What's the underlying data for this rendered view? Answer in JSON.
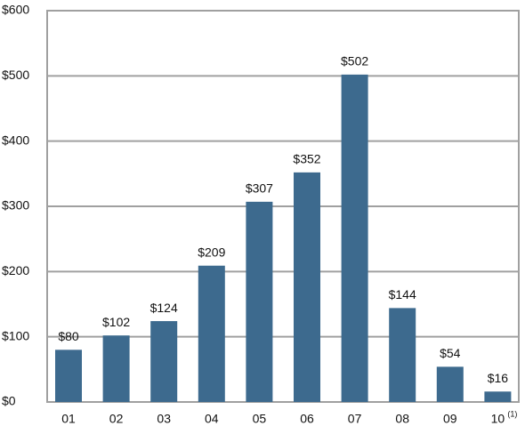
{
  "chart_data": {
    "type": "bar",
    "categories": [
      "01",
      "02",
      "03",
      "04",
      "05",
      "06",
      "07",
      "08",
      "09",
      "10"
    ],
    "category_notes": [
      null,
      null,
      null,
      null,
      null,
      null,
      null,
      null,
      null,
      "(1)"
    ],
    "values": [
      80,
      102,
      124,
      209,
      307,
      352,
      502,
      144,
      54,
      16
    ],
    "value_labels": [
      "$80",
      "$102",
      "$124",
      "$209",
      "$307",
      "$352",
      "$502",
      "$144",
      "$54",
      "$16"
    ],
    "color": "#3d6a8e",
    "ylim": [
      0,
      600
    ],
    "yticks": [
      {
        "value": 0,
        "label": "$0"
      },
      {
        "value": 100,
        "label": "$100"
      },
      {
        "value": 200,
        "label": "$200"
      },
      {
        "value": 300,
        "label": "$300"
      },
      {
        "value": 400,
        "label": "$400"
      },
      {
        "value": 500,
        "label": "$500"
      },
      {
        "value": 600,
        "label": "$600"
      }
    ],
    "grid": true
  }
}
